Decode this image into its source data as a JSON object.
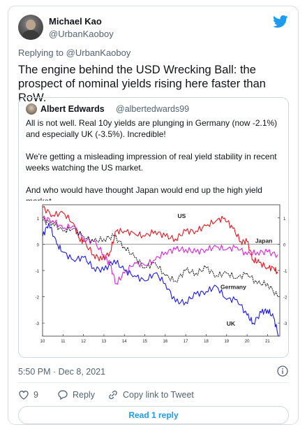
{
  "author": {
    "name": "Michael Kao",
    "handle": "@UrbanKaoboy"
  },
  "replying": {
    "prefix": "Replying to",
    "handle": "@UrbanKaoboy"
  },
  "tweet": {
    "text": "The engine behind the USD Wrecking Ball: the prospect of nominal yields rising here faster than RoW."
  },
  "quote": {
    "name": "Albert Edwards",
    "handle": "@albertedwards99",
    "paragraphs": [
      "All is not well. Real 10y yields are plunging in Germany (now -2.1%)  and especially UK (-3.5%). Incredible!",
      "We're getting a misleading impression of real yield stability in recent weeks watching the US market.",
      "And who would have thought Japan would end up the high yield market"
    ]
  },
  "chart_data": {
    "type": "line",
    "x_ticks": [
      "10",
      "11",
      "12",
      "13",
      "14",
      "15",
      "16",
      "17",
      "18",
      "19",
      "20",
      "21"
    ],
    "y_ticks": [
      "1",
      "0",
      "-1",
      "-2",
      "-3"
    ],
    "ylim": [
      -3.5,
      1.5
    ],
    "xlim": [
      2010,
      2021.6
    ],
    "series": [
      {
        "name": "US",
        "color": "#e8151c",
        "x": [
          2010,
          2010.5,
          2011,
          2011.5,
          2011.8,
          2012,
          2012.5,
          2012.9,
          2013.3,
          2013.6,
          2014,
          2014.5,
          2015,
          2015.5,
          2016,
          2016.5,
          2017,
          2017.5,
          2018,
          2018.5,
          2018.9,
          2019.3,
          2019.7,
          2020,
          2020.3,
          2020.6,
          2021,
          2021.3,
          2021.5
        ],
        "y": [
          1.4,
          1.1,
          1.2,
          0.8,
          0.2,
          0.1,
          -0.4,
          -0.6,
          -0.3,
          0.5,
          0.5,
          0.4,
          0.3,
          0.5,
          0.3,
          0.2,
          0.5,
          0.5,
          0.7,
          0.9,
          1.0,
          0.6,
          0.1,
          0.1,
          -0.6,
          -0.7,
          -0.9,
          -0.9,
          -1.1
        ]
      },
      {
        "name": "Japan",
        "color": "#e020e0",
        "x": [
          2010,
          2010.5,
          2011,
          2011.5,
          2012,
          2012.5,
          2013,
          2013.3,
          2013.6,
          2014,
          2014.5,
          2015,
          2015.5,
          2016,
          2016.5,
          2017,
          2017.5,
          2018,
          2018.5,
          2019,
          2019.5,
          2020,
          2020.5,
          2021,
          2021.5
        ],
        "y": [
          1.0,
          0.9,
          0.6,
          0.7,
          0.2,
          0.1,
          -0.4,
          -0.8,
          -1.5,
          -1.1,
          -0.7,
          -0.8,
          -0.6,
          -0.3,
          -0.2,
          -0.2,
          -0.3,
          -0.2,
          -0.1,
          -0.2,
          -0.1,
          -0.4,
          -0.3,
          -0.3,
          -0.4
        ]
      },
      {
        "name": "Germany",
        "color": "#222222",
        "x": [
          2010,
          2010.5,
          2011,
          2011.5,
          2012,
          2012.5,
          2013,
          2013.5,
          2014,
          2014.5,
          2015,
          2015.5,
          2016,
          2016.5,
          2017,
          2017.5,
          2018,
          2018.5,
          2019,
          2019.5,
          2020,
          2020.5,
          2021,
          2021.5
        ],
        "y": [
          0.9,
          0.8,
          0.5,
          0.6,
          0.3,
          0.1,
          0.2,
          0.3,
          -0.1,
          -0.5,
          -0.9,
          -0.7,
          -1.2,
          -1.4,
          -1.0,
          -1.1,
          -0.9,
          -1.2,
          -1.1,
          -1.3,
          -1.1,
          -1.5,
          -1.5,
          -2.0
        ]
      },
      {
        "name": "UK",
        "color": "#1a1aee",
        "x": [
          2010,
          2010.3,
          2010.7,
          2011,
          2011.5,
          2012,
          2012.5,
          2013,
          2013.5,
          2014,
          2014.5,
          2015,
          2015.5,
          2016,
          2016.5,
          2017,
          2017.5,
          2018,
          2018.5,
          2019,
          2019.5,
          2020,
          2020.3,
          2020.7,
          2021,
          2021.3,
          2021.55
        ],
        "y": [
          0.3,
          0.8,
          0.0,
          -0.3,
          -0.6,
          -0.5,
          -0.9,
          -1.0,
          -0.6,
          -1.0,
          -1.2,
          -1.4,
          -1.1,
          -1.5,
          -2.2,
          -2.2,
          -1.9,
          -1.8,
          -1.6,
          -2.1,
          -2.1,
          -2.7,
          -3.0,
          -2.6,
          -2.5,
          -2.8,
          -3.5
        ]
      }
    ],
    "labels": [
      {
        "text": "US",
        "x": 2016.6,
        "y": 1.0
      },
      {
        "text": "Japan",
        "x": 2020.4,
        "y": 0.05
      },
      {
        "text": "Germany",
        "x": 2018.7,
        "y": -1.7
      },
      {
        "text": "UK",
        "x": 2019.0,
        "y": -3.1
      }
    ],
    "zero_line": true
  },
  "meta": {
    "time": "5:50 PM · Dec 8, 2021"
  },
  "actions": {
    "likes": "9",
    "reply": "Reply",
    "copy": "Copy link to Tweet"
  },
  "read_reply": "Read 1 reply",
  "colors": {
    "accent": "#1d9bf0",
    "muted": "#536471"
  },
  "icons": [
    "twitter-bird-icon",
    "heart-icon",
    "reply-icon",
    "link-icon",
    "info-icon"
  ]
}
